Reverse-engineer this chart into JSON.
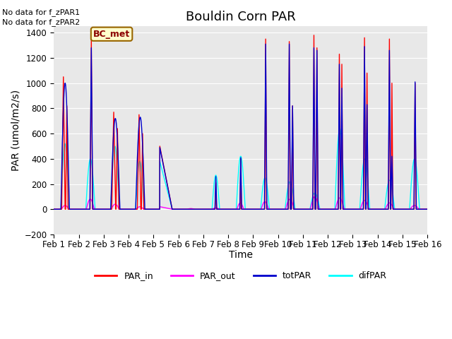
{
  "title": "Bouldin Corn PAR",
  "ylabel": "PAR (umol/m2/s)",
  "xlabel": "Time",
  "no_data_text_1": "No data for f_zPAR1",
  "no_data_text_2": "No data for f_zPAR2",
  "bc_met_label": "BC_met",
  "ylim": [
    -200,
    1450
  ],
  "yticks": [
    -200,
    0,
    200,
    400,
    600,
    800,
    1000,
    1200,
    1400
  ],
  "xlim_days": [
    0,
    15
  ],
  "xtick_labels": [
    "Feb 1",
    "Feb 2",
    "Feb 3",
    "Feb 4",
    "Feb 5",
    "Feb 6",
    "Feb 7",
    "Feb 8",
    "Feb 9",
    "Feb 10",
    "Feb 11",
    "Feb 12",
    "Feb 13",
    "Feb 14",
    "Feb 15",
    "Feb 16"
  ],
  "colors": {
    "PAR_in": "#FF0000",
    "PAR_out": "#FF00FF",
    "totPAR": "#0000CC",
    "difPAR": "#00FFFF"
  },
  "bg_color": "#E8E8E8",
  "title_fontsize": 13,
  "axis_label_fontsize": 10,
  "tick_fontsize": 8.5
}
